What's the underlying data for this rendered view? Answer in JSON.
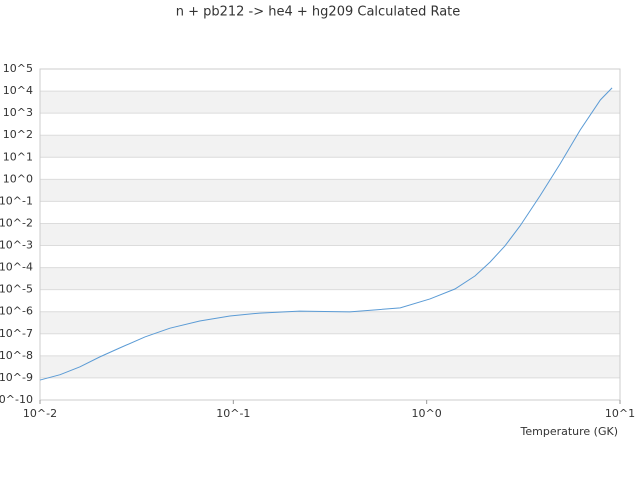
{
  "chart_data": {
    "type": "line",
    "title": "n + pb212 -> he4 + hg209 Calculated Rate",
    "x_label": "Temperature (GK)",
    "xscale": "log",
    "yscale": "log",
    "grid": true,
    "color": "#5b9bd5",
    "x": [
      0.01,
      0.0127,
      0.0161,
      0.0204,
      0.0259,
      0.0349,
      0.047,
      0.067,
      0.096,
      0.137,
      0.22,
      0.4,
      0.73,
      1.04,
      1.4,
      1.78,
      2.13,
      2.54,
      3.04,
      3.86,
      4.9,
      6.23,
      7.92,
      9.1
    ],
    "values": [
      8e-10,
      1.4e-09,
      3.2e-09,
      9e-09,
      2.3e-08,
      7.2e-08,
      1.8e-07,
      3.8e-07,
      6.4e-07,
      8.7e-07,
      1.07e-06,
      9.8e-07,
      1.5e-06,
      3.8e-06,
      1.07e-05,
      4.2e-05,
      0.00018,
      0.00096,
      0.0077,
      0.18,
      5,
      174,
      4000,
      14000
    ],
    "xlim": [
      0.01,
      10
    ],
    "xticks": [
      {
        "value": 0.01,
        "label": "10^-2"
      },
      {
        "value": 0.1,
        "label": "10^-1"
      },
      {
        "value": 1,
        "label": "10^0"
      },
      {
        "value": 10,
        "label": "10^1"
      }
    ],
    "ylim": [
      1e-10,
      100000
    ],
    "yticks": [
      {
        "value": 100000,
        "label": "10^5"
      },
      {
        "value": 10000,
        "label": "10^4"
      },
      {
        "value": 1000,
        "label": "10^3"
      },
      {
        "value": 100,
        "label": "10^2"
      },
      {
        "value": 10,
        "label": "10^1"
      },
      {
        "value": 1,
        "label": "10^0"
      },
      {
        "value": 0.1,
        "label": "10^-1"
      },
      {
        "value": 0.01,
        "label": "10^-2"
      },
      {
        "value": 0.001,
        "label": "10^-3"
      },
      {
        "value": 0.0001,
        "label": "10^-4"
      },
      {
        "value": 1e-05,
        "label": "10^-5"
      },
      {
        "value": 1e-06,
        "label": "10^-6"
      },
      {
        "value": 1e-07,
        "label": "10^-7"
      },
      {
        "value": 1e-08,
        "label": "10^-8"
      },
      {
        "value": 1e-09,
        "label": "10^-9"
      },
      {
        "value": 1e-10,
        "label": "10^-10"
      }
    ]
  }
}
